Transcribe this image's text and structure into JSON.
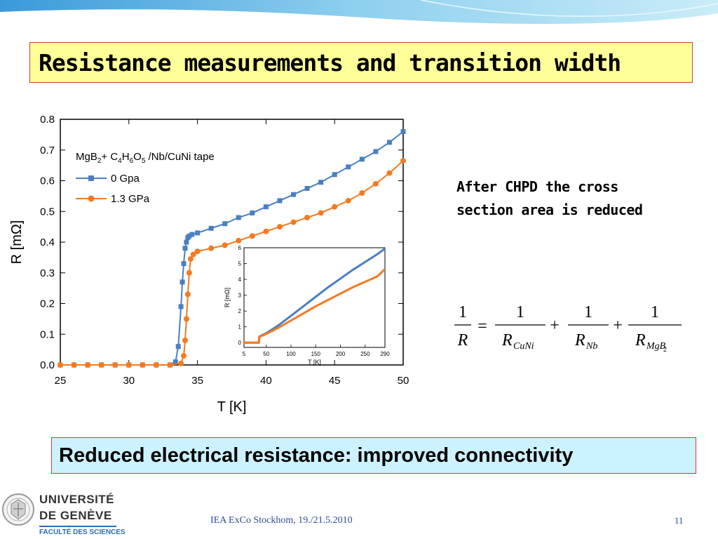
{
  "slide": {
    "title": "Resistance measurements and transition width",
    "note_line1": "After CHPD the cross",
    "note_line2": "section area is reduced",
    "conclusion": "Reduced electrical resistance: improved  connectivity",
    "footer": "IEA ExCo Stockhom, 19./21.5.2010",
    "page_number": "11",
    "logo": {
      "line1": "UNIVERSITÉ",
      "line2": "DE GENÈVE",
      "line3": "FACULTÉ DES SCIENCES"
    },
    "equation": {
      "lhs_num": "1",
      "lhs_den": "R",
      "terms": [
        {
          "num": "1",
          "den": "R",
          "sub": "CuNi"
        },
        {
          "num": "1",
          "den": "R",
          "sub": "Nb"
        },
        {
          "num": "1",
          "den": "R",
          "sub": "MgB",
          "subsub": "2"
        }
      ],
      "eq_sign": "=",
      "plus_sign": "+"
    },
    "colors": {
      "title_bg": "#ffff99",
      "border": "#d23a3a",
      "conclusion_bg": "#ccf2ff",
      "series_0": "#4a7fc1",
      "series_1": "#f47a20"
    }
  },
  "chart_data": [
    {
      "type": "line",
      "xlabel": "T [K]",
      "ylabel": "R [mΩ]",
      "xlim": [
        25,
        50
      ],
      "ylim": [
        0,
        0.8
      ],
      "xticks": [
        25,
        30,
        35,
        40,
        45,
        50
      ],
      "yticks": [
        0.0,
        0.1,
        0.2,
        0.3,
        0.4,
        0.5,
        0.6,
        0.7,
        0.8
      ],
      "xtick_labels": [
        "25",
        "30",
        "35",
        "40",
        "45",
        "50"
      ],
      "ytick_labels": [
        "0.0",
        "0.1",
        "0.2",
        "0.3",
        "0.4",
        "0.5",
        "0.6",
        "0.7",
        "0.8"
      ],
      "legend_title_parts": [
        {
          "t": "MgB",
          "sub": false
        },
        {
          "t": "2",
          "sub": true
        },
        {
          "t": "+ C",
          "sub": false
        },
        {
          "t": "4",
          "sub": true
        },
        {
          "t": "H",
          "sub": false
        },
        {
          "t": "6",
          "sub": true
        },
        {
          "t": "O",
          "sub": false
        },
        {
          "t": "5",
          "sub": true
        },
        {
          "t": " /Nb/CuNi tape",
          "sub": false
        }
      ],
      "legend_position": "top-left",
      "series": [
        {
          "name": "0 Gpa",
          "marker": "square",
          "color": "#4a7fc1",
          "x": [
            25.0,
            26.0,
            27.0,
            28.0,
            29.0,
            30.0,
            31.0,
            32.0,
            33.0,
            33.4,
            33.6,
            33.8,
            33.9,
            34.0,
            34.1,
            34.2,
            34.3,
            34.4,
            34.6,
            35.0,
            36.0,
            37.0,
            38.0,
            39.0,
            40.0,
            41.0,
            42.0,
            43.0,
            44.0,
            45.0,
            46.0,
            47.0,
            48.0,
            49.0,
            50.0
          ],
          "y": [
            0.0,
            0.0,
            0.0,
            0.0,
            0.0,
            0.0,
            0.0,
            0.0,
            0.0,
            0.01,
            0.06,
            0.19,
            0.27,
            0.33,
            0.38,
            0.4,
            0.415,
            0.42,
            0.425,
            0.43,
            0.445,
            0.46,
            0.48,
            0.495,
            0.515,
            0.535,
            0.555,
            0.575,
            0.595,
            0.62,
            0.645,
            0.67,
            0.695,
            0.725,
            0.76
          ]
        },
        {
          "name": "1.3 GPa",
          "marker": "circle",
          "color": "#f47a20",
          "x": [
            25.0,
            26.0,
            27.0,
            28.0,
            29.0,
            30.0,
            31.0,
            32.0,
            33.0,
            33.8,
            34.0,
            34.1,
            34.2,
            34.3,
            34.4,
            34.5,
            34.7,
            35.0,
            36.0,
            37.0,
            38.0,
            39.0,
            40.0,
            41.0,
            42.0,
            43.0,
            44.0,
            45.0,
            46.0,
            47.0,
            48.0,
            49.0,
            50.0
          ],
          "y": [
            0.0,
            0.0,
            0.0,
            0.0,
            0.0,
            0.0,
            0.0,
            0.0,
            0.0,
            0.005,
            0.03,
            0.08,
            0.15,
            0.23,
            0.3,
            0.345,
            0.36,
            0.37,
            0.38,
            0.39,
            0.405,
            0.42,
            0.435,
            0.45,
            0.465,
            0.48,
            0.495,
            0.515,
            0.535,
            0.56,
            0.59,
            0.625,
            0.665
          ]
        }
      ]
    },
    {
      "type": "line",
      "xlabel": "T [K]",
      "ylabel": "R [mΩ]",
      "xlim": [
        5,
        290
      ],
      "ylim": [
        -0.3,
        6
      ],
      "xticks": [
        5,
        50,
        100,
        150,
        200,
        250,
        290
      ],
      "yticks": [
        0,
        1,
        2,
        3,
        4,
        5,
        6
      ],
      "xtick_labels": [
        "5",
        "50",
        "100",
        "150",
        "200",
        "250",
        "290"
      ],
      "ytick_labels": [
        "0",
        "1",
        "2",
        "3",
        "4",
        "5",
        "6"
      ],
      "series": [
        {
          "name": "",
          "color": "#4a7fc1",
          "x": [
            5,
            20,
            35,
            36,
            40,
            50,
            75,
            100,
            125,
            150,
            175,
            200,
            225,
            250,
            275,
            290
          ],
          "y": [
            0,
            0,
            0,
            0.38,
            0.45,
            0.6,
            1.1,
            1.7,
            2.3,
            2.9,
            3.5,
            4.05,
            4.6,
            5.1,
            5.6,
            5.95
          ]
        },
        {
          "name": "",
          "color": "#f47a20",
          "x": [
            5,
            20,
            35,
            36,
            40,
            50,
            75,
            100,
            125,
            150,
            175,
            200,
            225,
            250,
            275,
            290
          ],
          "y": [
            0,
            0,
            0,
            0.35,
            0.42,
            0.55,
            0.95,
            1.4,
            1.85,
            2.3,
            2.7,
            3.1,
            3.5,
            3.85,
            4.2,
            4.65
          ]
        }
      ]
    }
  ]
}
